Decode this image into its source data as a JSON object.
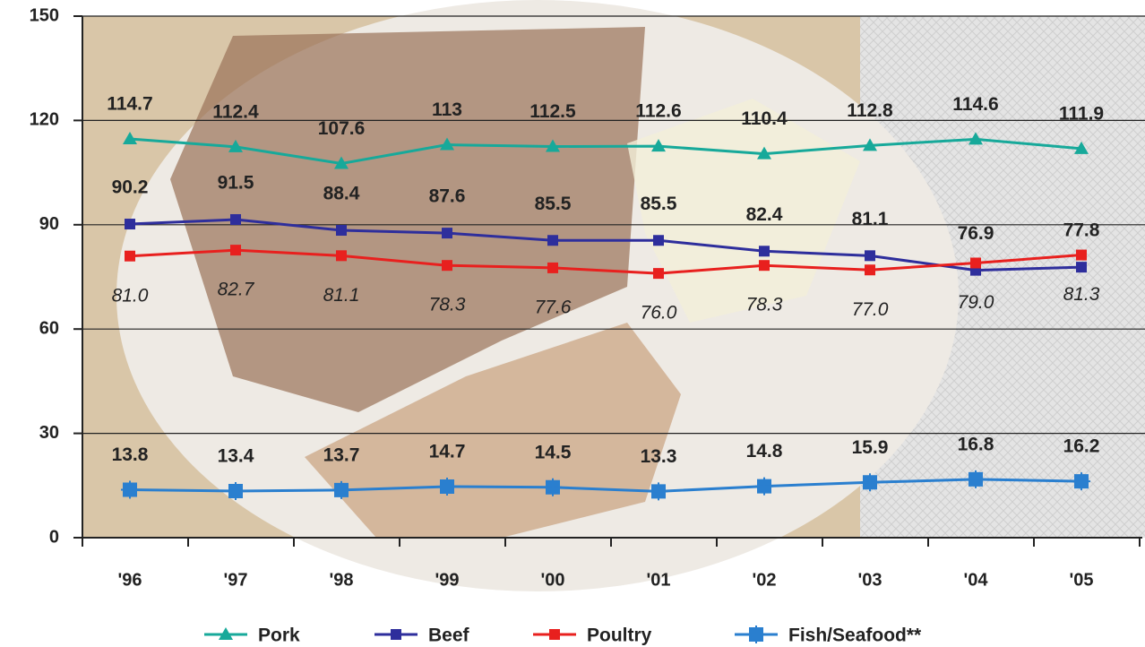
{
  "chart_data": {
    "type": "line",
    "categories": [
      "'96",
      "'97",
      "'98",
      "'99",
      "'00",
      "'01",
      "'02",
      "'03",
      "'04",
      "'05"
    ],
    "series": [
      {
        "name": "Pork",
        "color": "#17a99a",
        "marker": "triangle",
        "values": [
          114.7,
          112.4,
          107.6,
          113,
          112.5,
          112.6,
          110.4,
          112.8,
          114.6,
          111.9
        ]
      },
      {
        "name": "Beef",
        "color": "#2e2e9c",
        "marker": "square",
        "values": [
          90.2,
          91.5,
          88.4,
          87.6,
          85.5,
          85.5,
          82.4,
          81.1,
          76.9,
          77.8
        ]
      },
      {
        "name": "Poultry",
        "color": "#e8201e",
        "marker": "square",
        "values": [
          81.0,
          82.7,
          81.1,
          78.3,
          77.6,
          76.0,
          78.3,
          77.0,
          79.0,
          81.3
        ],
        "value_labels": [
          "81.0",
          "82.7",
          "81.1",
          "78.3",
          "77.6",
          "76.0",
          "78.3",
          "77.0",
          "79.0",
          "81.3"
        ]
      },
      {
        "name": "Fish/Seafood**",
        "color": "#2a7fcf",
        "marker": "star",
        "values": [
          13.8,
          13.4,
          13.7,
          14.7,
          14.5,
          13.3,
          14.8,
          15.9,
          16.8,
          16.2
        ]
      }
    ],
    "ylim": [
      0,
      150
    ],
    "yticks": [
      0,
      30,
      60,
      90,
      120,
      150
    ],
    "grid": true,
    "legend": "bottom"
  }
}
